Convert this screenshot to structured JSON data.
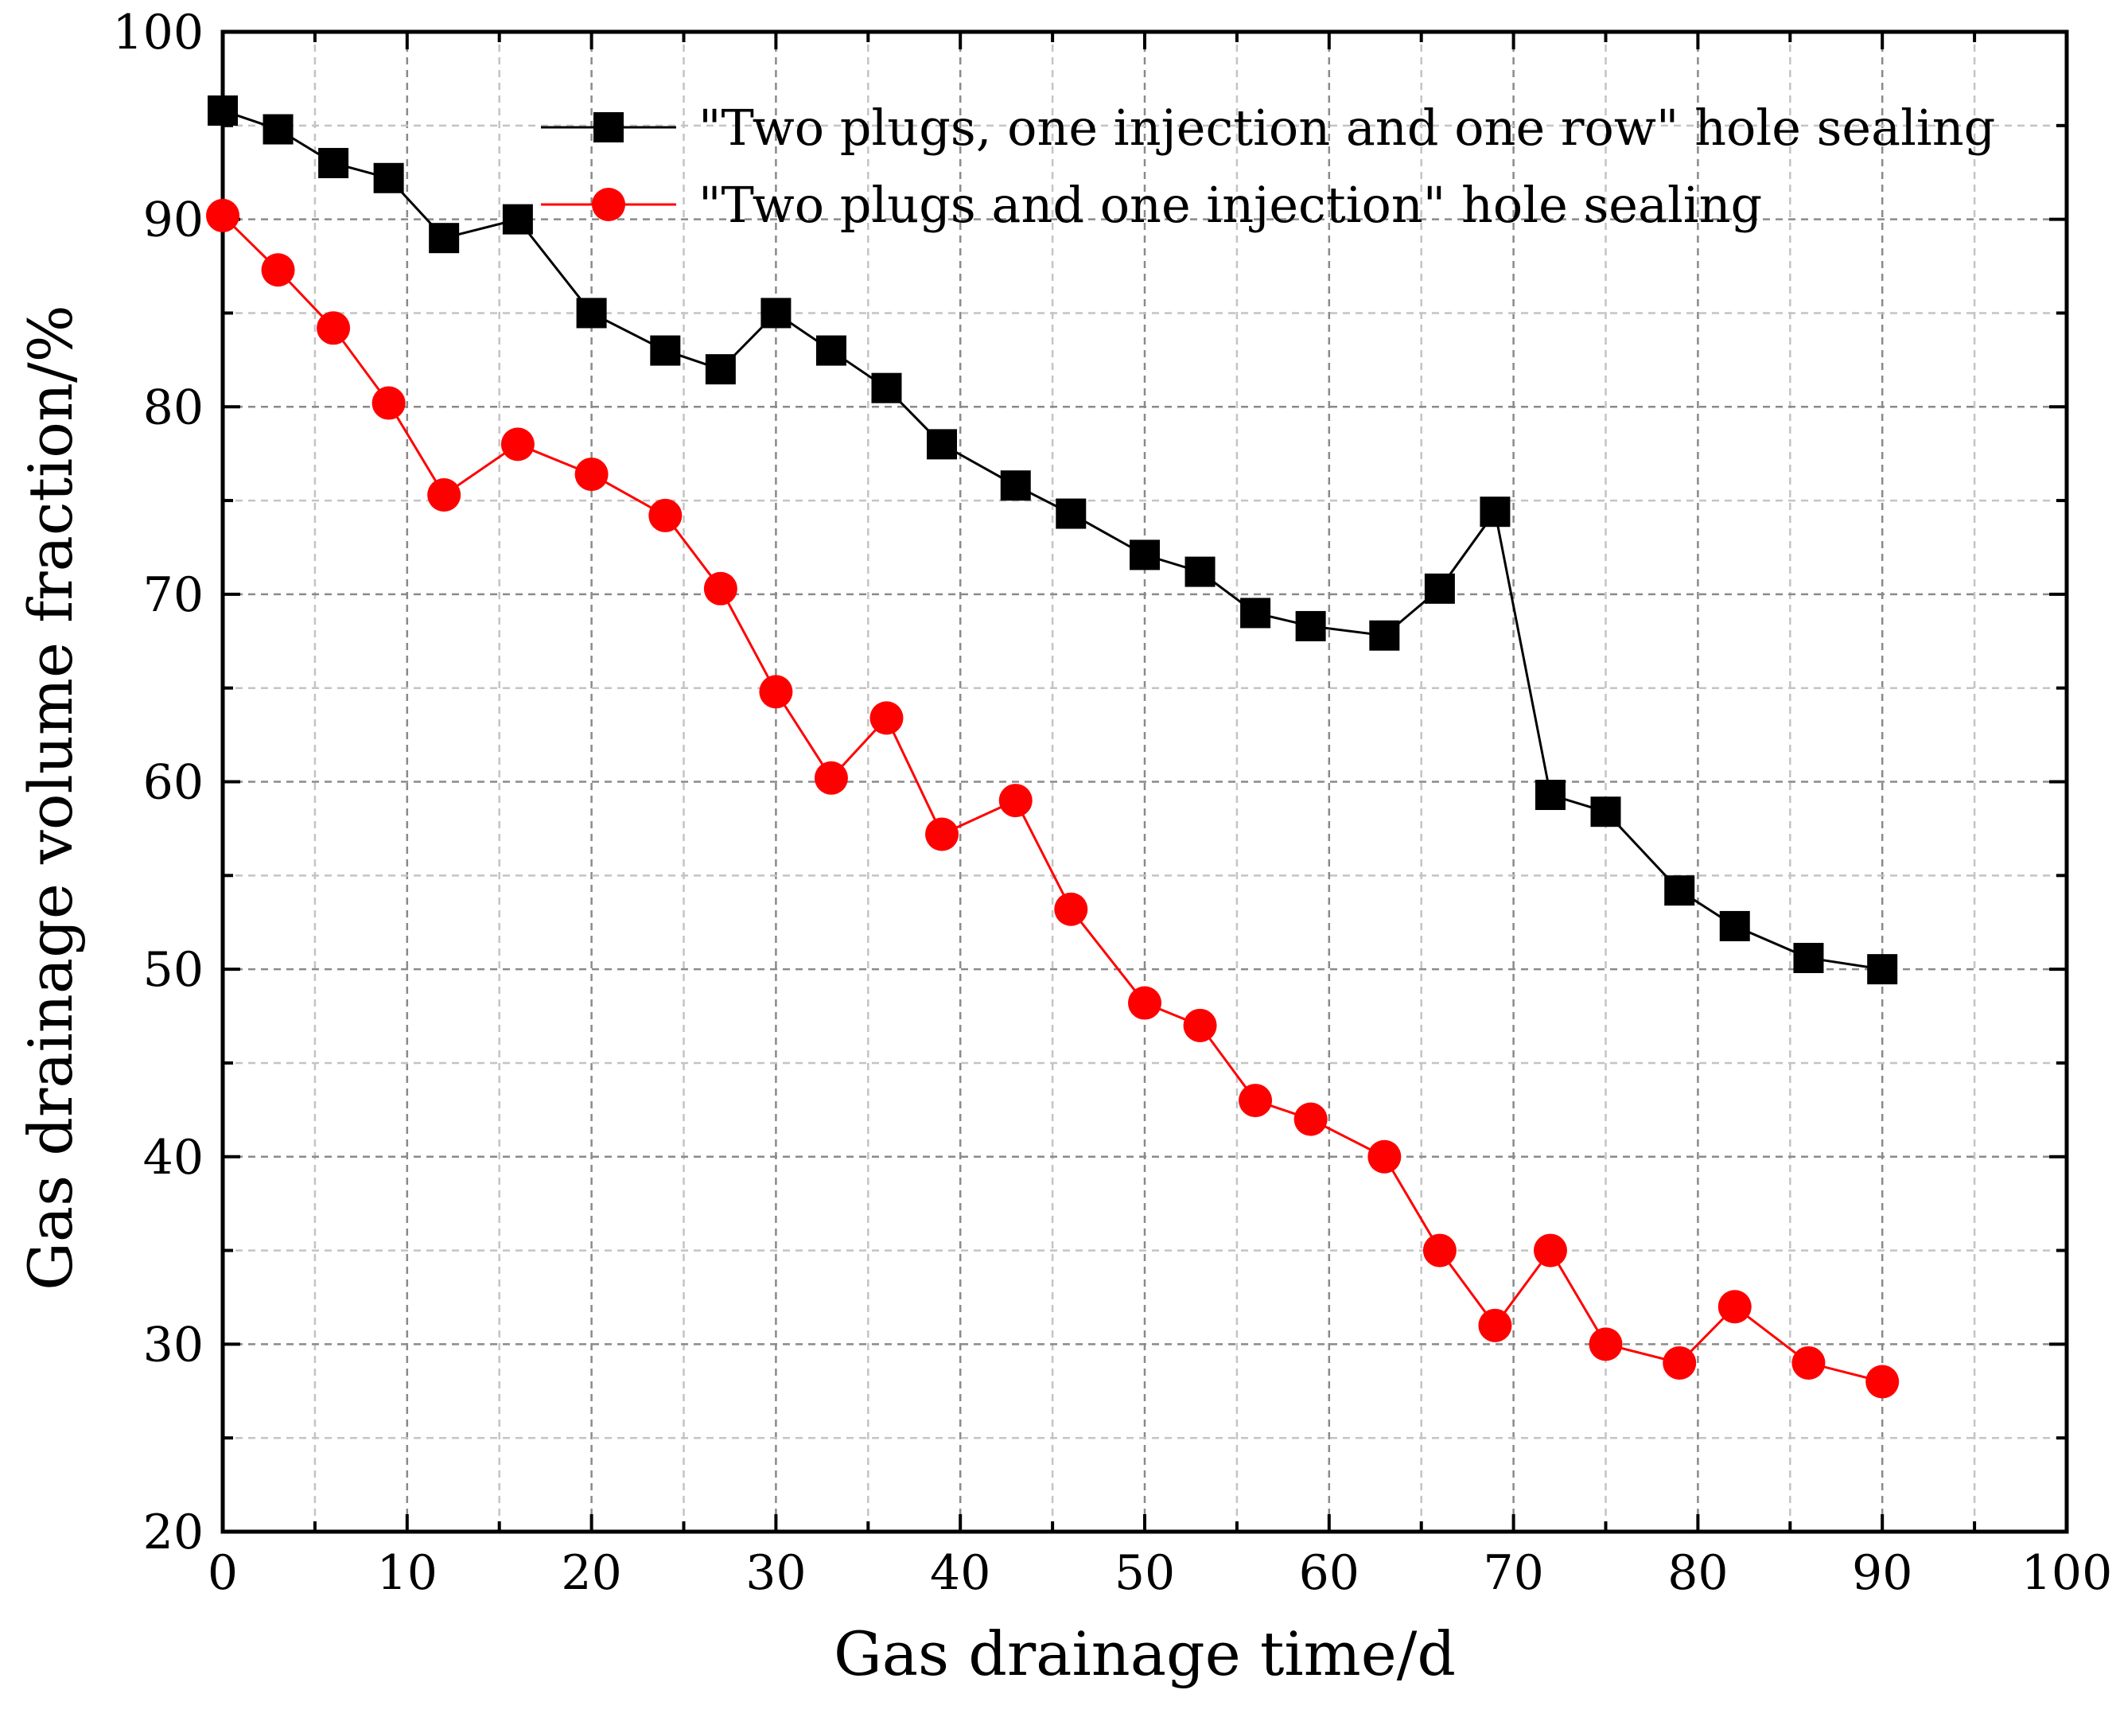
{
  "chart_data": {
    "type": "line",
    "title": "",
    "xlabel": "Gas drainage time/d",
    "ylabel": "Gas drainage volume fraction/%",
    "xlim": [
      0,
      100
    ],
    "ylim": [
      20,
      100
    ],
    "xticks": [
      "0",
      "10",
      "20",
      "30",
      "40",
      "50",
      "60",
      "70",
      "80",
      "90",
      "100"
    ],
    "yticks": [
      "20",
      "30",
      "40",
      "50",
      "60",
      "70",
      "80",
      "90",
      "100"
    ],
    "grid": true,
    "legend_position": "top-right",
    "series": [
      {
        "name": "\"Two plugs, one injection and one row\" hole sealing",
        "color": "#000000",
        "marker": "square",
        "x": [
          0,
          3,
          6,
          9,
          12,
          16,
          20,
          24,
          27,
          30,
          33,
          36,
          39,
          43,
          46,
          50,
          53,
          56,
          59,
          63,
          66,
          69,
          72,
          75,
          79,
          82,
          86,
          90
        ],
        "y": [
          95.8,
          94.8,
          93.0,
          92.2,
          89.0,
          90.0,
          85.0,
          83.0,
          82.0,
          85.0,
          83.0,
          81.0,
          78.0,
          75.8,
          74.3,
          72.1,
          71.2,
          69.0,
          68.3,
          67.8,
          70.3,
          74.4,
          59.3,
          58.4,
          54.2,
          52.3,
          50.6,
          50.0
        ]
      },
      {
        "name": "\"Two plugs and one injection\" hole sealing",
        "color": "#ff0000",
        "marker": "circle",
        "x": [
          0,
          3,
          6,
          9,
          12,
          16,
          20,
          24,
          27,
          30,
          33,
          36,
          39,
          43,
          46,
          50,
          53,
          56,
          59,
          63,
          66,
          69,
          72,
          75,
          79,
          82,
          86,
          90
        ],
        "y": [
          90.2,
          87.3,
          84.2,
          80.2,
          75.3,
          78.0,
          76.4,
          74.2,
          70.3,
          64.8,
          60.2,
          63.4,
          57.2,
          59.0,
          53.2,
          48.2,
          47.0,
          43.0,
          42.0,
          40.0,
          35.0,
          31.0,
          35.0,
          30.0,
          29.0,
          32.0,
          29.0,
          28.0
        ]
      }
    ]
  }
}
